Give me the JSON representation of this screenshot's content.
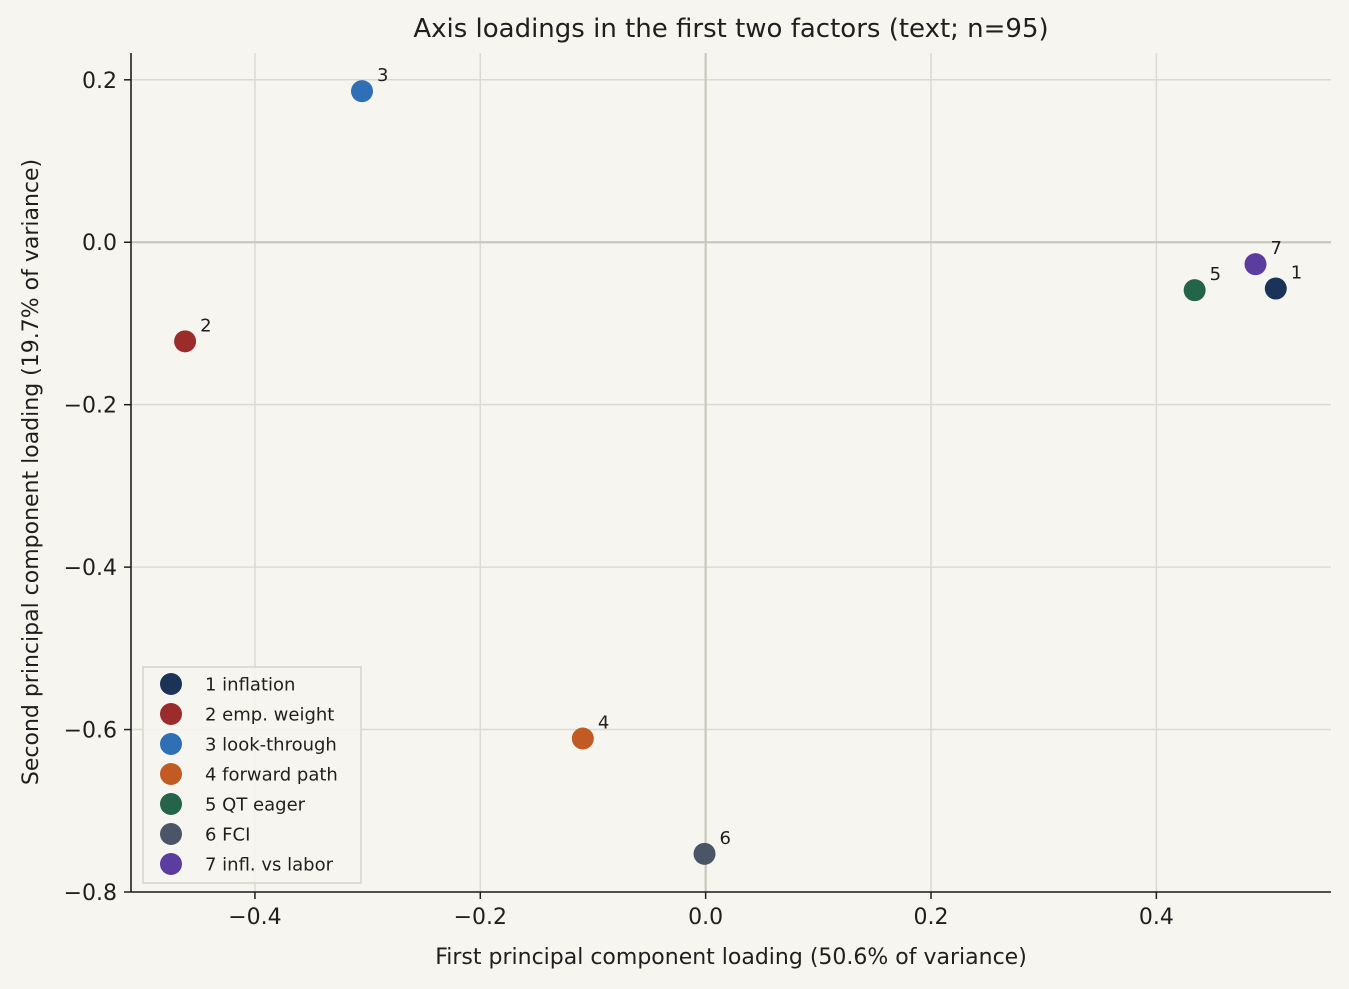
{
  "chart_data": {
    "type": "scatter",
    "title": "Axis loadings in the first two factors (text; n=95)",
    "xlabel": "First principal component loading (50.6% of variance)",
    "ylabel": "Second principal component loading (19.7% of variance)",
    "xlim": [
      -0.51,
      0.555
    ],
    "ylim": [
      -0.8,
      0.233
    ],
    "xticks": [
      -0.4,
      -0.2,
      0.0,
      0.2,
      0.4
    ],
    "xtick_labels": [
      "−0.4",
      "−0.2",
      "0.0",
      "0.2",
      "0.4"
    ],
    "yticks": [
      0.2,
      0.0,
      -0.2,
      -0.4,
      -0.6,
      -0.8
    ],
    "ytick_labels": [
      "0.2",
      "0.0",
      "−0.2",
      "−0.4",
      "−0.6",
      "−0.8"
    ],
    "grid": true,
    "reference_lines": {
      "x": 0.0,
      "y": 0.0
    },
    "legend_position": "lower-left",
    "points": [
      {
        "label": "1",
        "legend": "1 inflation",
        "x": 0.506,
        "y": -0.057,
        "color": "#1b3358"
      },
      {
        "label": "2",
        "legend": "2 emp. weight",
        "x": -0.462,
        "y": -0.122,
        "color": "#9c2b2b"
      },
      {
        "label": "3",
        "legend": "3 look-through",
        "x": -0.305,
        "y": 0.186,
        "color": "#2e6fb5"
      },
      {
        "label": "4",
        "legend": "4 forward path",
        "x": -0.109,
        "y": -0.611,
        "color": "#c25a24"
      },
      {
        "label": "5",
        "legend": "5 QT eager",
        "x": 0.434,
        "y": -0.059,
        "color": "#23644a"
      },
      {
        "label": "6",
        "legend": "6 FCI",
        "x": -0.001,
        "y": -0.753,
        "color": "#4b5568"
      },
      {
        "label": "7",
        "legend": "7 infl. vs labor",
        "x": 0.488,
        "y": -0.027,
        "color": "#5b3c9f"
      }
    ]
  },
  "colors": {
    "background": "#f6f5f0",
    "grid": "#dcdad2",
    "reference": "#cac8bc",
    "axis": "#1f1f1f"
  }
}
